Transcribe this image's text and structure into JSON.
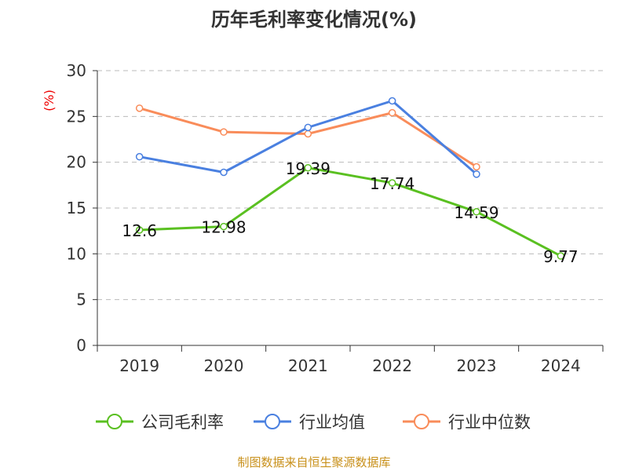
{
  "chart_data": {
    "type": "line",
    "title": "历年毛利率变化情况(%)",
    "ylabel": "(%)",
    "xlabel": "",
    "categories": [
      "2019",
      "2020",
      "2021",
      "2022",
      "2023",
      "2024"
    ],
    "ylim": [
      0,
      30
    ],
    "yticks": [
      "0",
      "5",
      "10",
      "15",
      "20",
      "25",
      "30"
    ],
    "grid": true,
    "legend_position": "bottom",
    "series": [
      {
        "name": "公司毛利率",
        "color": "#5ac021",
        "values": [
          12.6,
          12.98,
          19.39,
          17.74,
          14.59,
          9.77
        ],
        "labels": [
          "12.6",
          "12.98",
          "19.39",
          "17.74",
          "14.59",
          "9.77"
        ]
      },
      {
        "name": "行业均值",
        "color": "#4a80e0",
        "values": [
          20.6,
          18.9,
          23.8,
          26.7,
          18.7,
          null
        ]
      },
      {
        "name": "行业中位数",
        "color": "#f98c5a",
        "values": [
          25.9,
          23.3,
          23.1,
          25.4,
          19.5,
          null
        ]
      }
    ],
    "source": "制图数据来自恒生聚源数据库"
  }
}
